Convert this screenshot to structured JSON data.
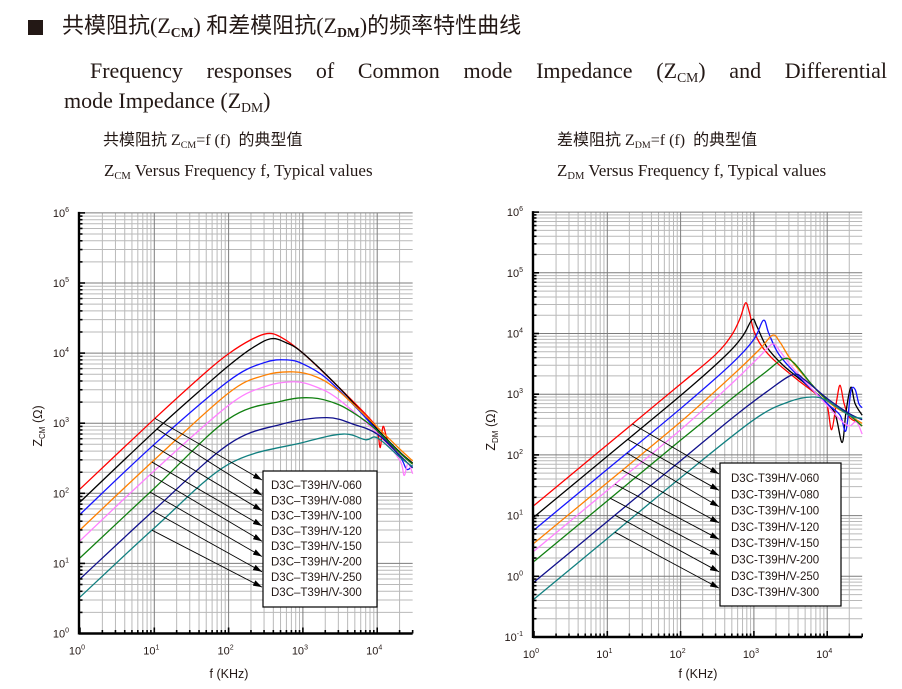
{
  "header": {
    "bullet_icon": "black-square",
    "title": {
      "t1": "共模阻抗(Z",
      "s1": "CM",
      "t2": ") 和差模阻抗(Z",
      "s2": "DM",
      "t3": ")的频率特性曲线"
    },
    "intro": {
      "l1a": "Frequency responses of Common mode Impedance (Z",
      "l1s": "CM",
      "l1b": ") and Differential",
      "l2a": "mode Impedance (Z",
      "l2s": "DM",
      "l2b": ")"
    }
  },
  "panels": [
    {
      "cn_a": "共模阻抗 Z",
      "cn_s": "CM",
      "cn_b": "=f (f)  的典型值",
      "en_a": "Z",
      "en_s": "CM",
      "en_b": " Versus Frequency f, Typical values"
    },
    {
      "cn_a": "差模阻抗 Z",
      "cn_s": "DM",
      "cn_b": "=f (f)  的典型值",
      "en_a": "Z",
      "en_s": "DM",
      "en_b": " Versus Frequency f, Typical values"
    }
  ],
  "chart_data": [
    {
      "type": "line",
      "id": "common-mode-impedance",
      "xscale": "log",
      "yscale": "log",
      "xlim": [
        1,
        30000
      ],
      "ylim": [
        1,
        1000000
      ],
      "grid": true,
      "xlabel": "f (KHz)",
      "ylabel": {
        "main": "Z",
        "sub": "CM",
        "rest": " (Ω)"
      },
      "xtick_labels": [
        "10^0",
        "10^1",
        "10^2",
        "10^3",
        "10^4"
      ],
      "ytick_labels": [
        "10^0",
        "10^1",
        "10^2",
        "10^3",
        "10^4",
        "10^5",
        "10^6"
      ],
      "legend_placement": "lower-right (boxed, with arrows to curves)",
      "legend_arrow_f": [
        10.2,
        10.9,
        9.6,
        9.3,
        8.8,
        8.8,
        9.6,
        9.3
      ],
      "series": [
        {
          "name": "D3C–T39H/V-060",
          "color": "#ff0000",
          "points": [
            [
              1,
              115
            ],
            [
              10,
              1150
            ],
            [
              50,
              5400
            ],
            [
              100,
              9800
            ],
            [
              200,
              15500
            ],
            [
              330,
              19000
            ],
            [
              500,
              17000
            ],
            [
              1000,
              10000
            ],
            [
              3000,
              3300
            ],
            [
              8000,
              1150
            ],
            [
              10000,
              800
            ],
            [
              11000,
              450
            ],
            [
              12000,
              900
            ],
            [
              14000,
              560
            ],
            [
              20000,
              380
            ],
            [
              30000,
              260
            ]
          ]
        },
        {
          "name": "D3C–T39H/V-080",
          "color": "#000000",
          "points": [
            [
              1,
              75
            ],
            [
              10,
              760
            ],
            [
              50,
              3500
            ],
            [
              100,
              6600
            ],
            [
              200,
              11500
            ],
            [
              370,
              16000
            ],
            [
              600,
              14000
            ],
            [
              1000,
              10000
            ],
            [
              3000,
              3300
            ],
            [
              10000,
              820
            ],
            [
              20000,
              390
            ],
            [
              30000,
              270
            ]
          ]
        },
        {
          "name": "D3C–T39H/V-100",
          "color": "#1414ff",
          "points": [
            [
              1,
              50
            ],
            [
              10,
              500
            ],
            [
              100,
              4000
            ],
            [
              300,
              7300
            ],
            [
              610,
              8000
            ],
            [
              1000,
              7000
            ],
            [
              2000,
              4500
            ],
            [
              5000,
              1750
            ],
            [
              10000,
              780
            ],
            [
              20000,
              340
            ],
            [
              25000,
              220
            ],
            [
              30000,
              250
            ]
          ]
        },
        {
          "name": "D3C–T39H/V-120",
          "color": "#ff8000",
          "points": [
            [
              1,
              30
            ],
            [
              10,
              300
            ],
            [
              100,
              2700
            ],
            [
              300,
              4800
            ],
            [
              740,
              5400
            ],
            [
              1500,
              4600
            ],
            [
              3000,
              2900
            ],
            [
              10000,
              880
            ],
            [
              20000,
              430
            ],
            [
              30000,
              290
            ]
          ]
        },
        {
          "name": "D3C–T39H/V-150",
          "color": "#ff80ff",
          "points": [
            [
              1,
              21
            ],
            [
              10,
              210
            ],
            [
              100,
              1800
            ],
            [
              300,
              3300
            ],
            [
              760,
              3900
            ],
            [
              1500,
              3300
            ],
            [
              3000,
              2200
            ],
            [
              10000,
              720
            ],
            [
              20000,
              300
            ],
            [
              23000,
              180
            ],
            [
              26000,
              270
            ],
            [
              30000,
              190
            ]
          ]
        },
        {
          "name": "D3C–T39H/V-200",
          "color": "#118011",
          "points": [
            [
              1,
              12
            ],
            [
              10,
              118
            ],
            [
              100,
              1150
            ],
            [
              500,
              2050
            ],
            [
              1330,
              2300
            ],
            [
              3000,
              1850
            ],
            [
              6000,
              1200
            ],
            [
              10000,
              780
            ],
            [
              20000,
              380
            ],
            [
              30000,
              260
            ]
          ]
        },
        {
          "name": "D3C–T39H/V-250",
          "color": "#10108c",
          "points": [
            [
              1,
              6
            ],
            [
              10,
              58
            ],
            [
              100,
              500
            ],
            [
              500,
              960
            ],
            [
              2100,
              1200
            ],
            [
              5000,
              950
            ],
            [
              10000,
              700
            ],
            [
              20000,
              350
            ],
            [
              30000,
              230
            ]
          ]
        },
        {
          "name": "D3C–T39H/V-300",
          "color": "#118080",
          "points": [
            [
              1,
              3.3
            ],
            [
              10,
              32
            ],
            [
              100,
              260
            ],
            [
              1000,
              530
            ],
            [
              3500,
              700
            ],
            [
              7000,
              580
            ],
            [
              10000,
              620
            ],
            [
              20000,
              330
            ],
            [
              30000,
              240
            ]
          ]
        }
      ]
    },
    {
      "type": "line",
      "id": "differential-mode-impedance",
      "xscale": "log",
      "yscale": "log",
      "xlim": [
        1,
        30000
      ],
      "ylim": [
        0.1,
        1000000
      ],
      "grid": true,
      "xlabel": "f (KHz)",
      "ylabel": {
        "main": "Z",
        "sub": "DM",
        "rest": " (Ω)"
      },
      "xtick_labels": [
        "10^0",
        "10^1",
        "10^2",
        "10^3",
        "10^4"
      ],
      "ytick_labels": [
        "10^-1",
        "10^0",
        "10^1",
        "10^2",
        "10^3",
        "10^4",
        "10^5",
        "10^6"
      ],
      "legend_placement": "lower-right (boxed, with arrows to curves)",
      "legend_arrow_f": [
        22,
        19,
        18.5,
        16,
        12.7,
        11,
        12.7,
        12.7
      ],
      "series": [
        {
          "name": "D3C-T39H/V-060",
          "color": "#ff0000",
          "points": [
            [
              1,
              14.7
            ],
            [
              10,
              147
            ],
            [
              100,
              1470
            ],
            [
              300,
              4500
            ],
            [
              500,
              9500
            ],
            [
              650,
              18000
            ],
            [
              770,
              32000
            ],
            [
              870,
              22000
            ],
            [
              1000,
              11000
            ],
            [
              1300,
              6000
            ],
            [
              2000,
              3400
            ],
            [
              4000,
              1700
            ],
            [
              8000,
              900
            ],
            [
              10000,
              650
            ],
            [
              11500,
              260
            ],
            [
              13500,
              800
            ],
            [
              15000,
              1400
            ],
            [
              17000,
              700
            ],
            [
              20000,
              420
            ],
            [
              25000,
              350
            ],
            [
              30000,
              300
            ]
          ]
        },
        {
          "name": "D3C-T39H/V-080",
          "color": "#000000",
          "points": [
            [
              1,
              9.5
            ],
            [
              10,
              95
            ],
            [
              100,
              950
            ],
            [
              400,
              4200
            ],
            [
              700,
              9000
            ],
            [
              950,
              17000
            ],
            [
              1100,
              13000
            ],
            [
              1500,
              6000
            ],
            [
              2500,
              3000
            ],
            [
              5000,
              1500
            ],
            [
              10000,
              700
            ],
            [
              13000,
              450
            ],
            [
              16000,
              160
            ],
            [
              18000,
              500
            ],
            [
              21000,
              1300
            ],
            [
              24000,
              700
            ],
            [
              30000,
              450
            ]
          ]
        },
        {
          "name": "D3C-T39H/V-100",
          "color": "#1414ff",
          "points": [
            [
              1,
              5.8
            ],
            [
              10,
              58
            ],
            [
              100,
              580
            ],
            [
              500,
              3200
            ],
            [
              1000,
              8000
            ],
            [
              1350,
              16500
            ],
            [
              1600,
              10000
            ],
            [
              2200,
              4500
            ],
            [
              4000,
              2000
            ],
            [
              10000,
              700
            ],
            [
              15000,
              450
            ],
            [
              18000,
              250
            ],
            [
              21000,
              1100
            ],
            [
              24000,
              1200
            ],
            [
              27000,
              700
            ],
            [
              30000,
              600
            ]
          ]
        },
        {
          "name": "D3C-T39H/V-120",
          "color": "#ff8000",
          "points": [
            [
              1,
              3.5
            ],
            [
              10,
              35
            ],
            [
              100,
              350
            ],
            [
              500,
              2000
            ],
            [
              1200,
              5500
            ],
            [
              1800,
              9400
            ],
            [
              2300,
              7000
            ],
            [
              3500,
              3200
            ],
            [
              10000,
              780
            ],
            [
              20000,
              450
            ],
            [
              30000,
              330
            ]
          ]
        },
        {
          "name": "D3C-T39H/V-150",
          "color": "#ff80ff",
          "points": [
            [
              1,
              2.6
            ],
            [
              10,
              26
            ],
            [
              100,
              260
            ],
            [
              500,
              1500
            ],
            [
              1200,
              4200
            ],
            [
              1800,
              6700
            ],
            [
              2300,
              5000
            ],
            [
              3500,
              2600
            ],
            [
              10000,
              650
            ],
            [
              15000,
              380
            ],
            [
              20000,
              300
            ],
            [
              25000,
              350
            ],
            [
              30000,
              220
            ]
          ]
        },
        {
          "name": "D3C-T39H/V-200",
          "color": "#118011",
          "points": [
            [
              1,
              1.75
            ],
            [
              10,
              17.5
            ],
            [
              100,
              175
            ],
            [
              500,
              850
            ],
            [
              1500,
              2400
            ],
            [
              2500,
              3800
            ],
            [
              3500,
              3300
            ],
            [
              6000,
              1500
            ],
            [
              10000,
              800
            ],
            [
              20000,
              450
            ],
            [
              30000,
              300
            ]
          ]
        },
        {
          "name": "D3C-T39H/V-250",
          "color": "#10108c",
          "points": [
            [
              1,
              0.8
            ],
            [
              10,
              8
            ],
            [
              100,
              80
            ],
            [
              500,
              400
            ],
            [
              1500,
              1100
            ],
            [
              3400,
              2100
            ],
            [
              5000,
              1700
            ],
            [
              10000,
              850
            ],
            [
              20000,
              480
            ],
            [
              30000,
              380
            ]
          ]
        },
        {
          "name": "D3C-T39H/V-300",
          "color": "#118080",
          "points": [
            [
              1,
              0.42
            ],
            [
              10,
              4.2
            ],
            [
              100,
              42
            ],
            [
              1000,
              380
            ],
            [
              3000,
              750
            ],
            [
              6200,
              900
            ],
            [
              10000,
              780
            ],
            [
              20000,
              450
            ],
            [
              30000,
              400
            ]
          ]
        }
      ]
    }
  ]
}
